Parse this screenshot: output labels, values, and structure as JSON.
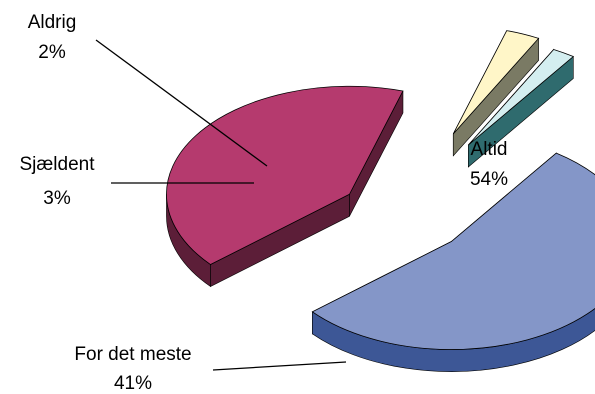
{
  "chart_data": {
    "type": "pie",
    "style": "3d-exploded",
    "title": "",
    "slices": [
      {
        "label": "Altid",
        "value": 54,
        "value_label": "54%",
        "color": "#8496C8",
        "side_color": "#3D5796"
      },
      {
        "label": "For det meste",
        "value": 41,
        "value_label": "41%",
        "color": "#B53A6E",
        "side_color": "#5C1E38"
      },
      {
        "label": "Sjældent",
        "value": 3,
        "value_label": "3%",
        "color": "#FFF6C8",
        "side_color": "#7A7A64"
      },
      {
        "label": "Aldrig",
        "value": 2,
        "value_label": "2%",
        "color": "#D4EEF0",
        "side_color": "#2F6B6E"
      }
    ]
  }
}
